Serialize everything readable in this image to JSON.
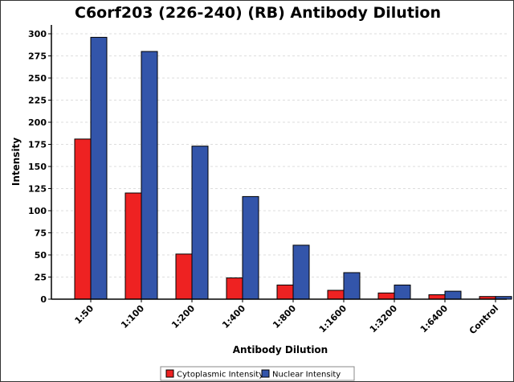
{
  "chart_data": {
    "type": "bar",
    "title": "C6orf203 (226-240) (RB) Antibody Dilution",
    "xlabel": "Antibody Dilution",
    "ylabel": "Intensity",
    "ylim": [
      0,
      310
    ],
    "yticks": [
      0,
      25,
      50,
      75,
      100,
      125,
      150,
      175,
      200,
      225,
      250,
      275,
      300
    ],
    "grid": true,
    "legend_position": "bottom",
    "categories": [
      "1:50",
      "1:100",
      "1:200",
      "1:400",
      "1:800",
      "1:1600",
      "1:3200",
      "1:6400",
      "Control"
    ],
    "series": [
      {
        "name": "Cytoplasmic Intensity",
        "color": "#ee2222",
        "values": [
          181,
          120,
          51,
          24,
          16,
          10,
          7,
          5,
          3
        ]
      },
      {
        "name": "Nuclear Intensity",
        "color": "#3355aa",
        "values": [
          296,
          280,
          173,
          116,
          61,
          30,
          16,
          9,
          3
        ]
      }
    ]
  }
}
